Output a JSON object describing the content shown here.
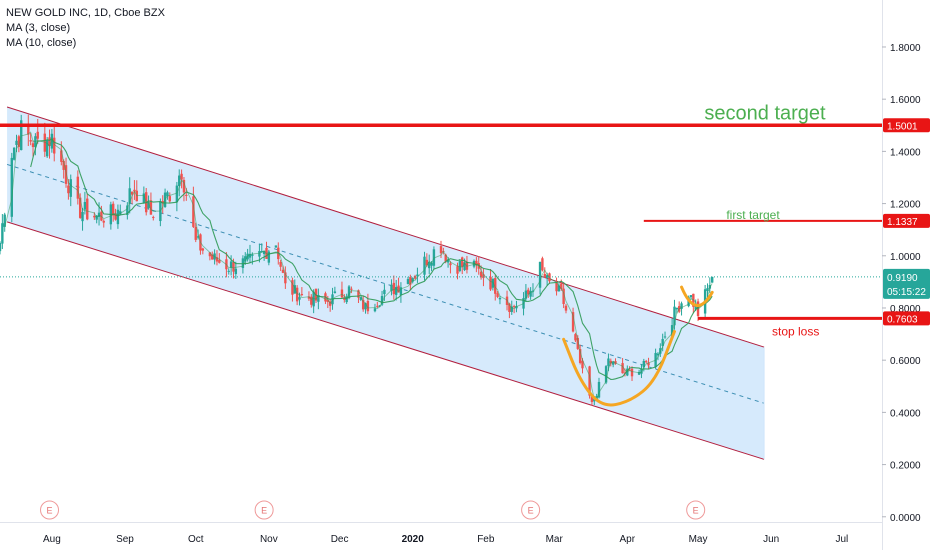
{
  "legend": {
    "title": "NEW GOLD INC, 1D, Cboe BZX",
    "ma_short": "MA (3, close)",
    "ma_long": "MA (10, close)"
  },
  "colors": {
    "up": "#26a69a",
    "down": "#ef5350",
    "channel_fill": "#cfe6fb",
    "channel_edge": "#b2203f",
    "midline": "#3d8fb3",
    "level_line": "#e81515",
    "ma": "#2e9a55",
    "cup": "#f5a623",
    "target_text": "#4caf50"
  },
  "chart_data": {
    "type": "candlestick",
    "title": "NEW GOLD INC, 1D, Cboe BZX",
    "y_ticks": [
      "0.0000",
      "0.2000",
      "0.4000",
      "0.6000",
      "0.8000",
      "1.0000",
      "1.2000",
      "1.4000",
      "1.6000",
      "1.8000"
    ],
    "x_ticks": [
      "Aug",
      "Sep",
      "Oct",
      "Nov",
      "Dec",
      "2020",
      "Feb",
      "Mar",
      "Apr",
      "May",
      "Jun",
      "Jul"
    ],
    "ylim": [
      -0.02,
      1.98
    ],
    "x_axis_range": [
      "2019-07-10",
      "2020-07-18"
    ],
    "series": [
      {
        "name": "MA (3, close)",
        "type": "line"
      },
      {
        "name": "MA (10, close)",
        "type": "line"
      }
    ],
    "ohlc_anchor_closes": [
      [
        "2019-07-10",
        1.05
      ],
      [
        "2019-07-15",
        1.4
      ],
      [
        "2019-07-19",
        1.48
      ],
      [
        "2019-07-25",
        1.43
      ],
      [
        "2019-08-01",
        1.45
      ],
      [
        "2019-08-06",
        1.33
      ],
      [
        "2019-08-12",
        1.18
      ],
      [
        "2019-08-20",
        1.15
      ],
      [
        "2019-08-28",
        1.16
      ],
      [
        "2019-09-05",
        1.26
      ],
      [
        "2019-09-12",
        1.16
      ],
      [
        "2019-09-20",
        1.24
      ],
      [
        "2019-09-25",
        1.33
      ],
      [
        "2019-10-01",
        1.05
      ],
      [
        "2019-10-08",
        0.99
      ],
      [
        "2019-10-15",
        0.96
      ],
      [
        "2019-10-25",
        0.98
      ],
      [
        "2019-11-04",
        1.05
      ],
      [
        "2019-11-08",
        0.88
      ],
      [
        "2019-11-14",
        0.85
      ],
      [
        "2019-11-25",
        0.82
      ],
      [
        "2019-12-05",
        0.87
      ],
      [
        "2019-12-12",
        0.8
      ],
      [
        "2019-12-20",
        0.85
      ],
      [
        "2020-01-02",
        0.93
      ],
      [
        "2020-01-08",
        1.0
      ],
      [
        "2020-01-13",
        1.04
      ],
      [
        "2020-01-17",
        0.97
      ],
      [
        "2020-01-28",
        0.95
      ],
      [
        "2020-02-05",
        0.88
      ],
      [
        "2020-02-12",
        0.8
      ],
      [
        "2020-02-19",
        0.85
      ],
      [
        "2020-02-24",
        0.95
      ],
      [
        "2020-02-27",
        0.9
      ],
      [
        "2020-03-04",
        0.85
      ],
      [
        "2020-03-09",
        0.7
      ],
      [
        "2020-03-13",
        0.55
      ],
      [
        "2020-03-17",
        0.43
      ],
      [
        "2020-03-20",
        0.5
      ],
      [
        "2020-03-24",
        0.6
      ],
      [
        "2020-03-30",
        0.55
      ],
      [
        "2020-04-06",
        0.56
      ],
      [
        "2020-04-13",
        0.62
      ],
      [
        "2020-04-17",
        0.7
      ],
      [
        "2020-04-22",
        0.8
      ],
      [
        "2020-04-27",
        0.86
      ],
      [
        "2020-05-01",
        0.78
      ],
      [
        "2020-05-05",
        0.87
      ],
      [
        "2020-05-07",
        0.919
      ]
    ],
    "channel": {
      "upper_start": [
        "2019-07-13",
        1.57
      ],
      "upper_end": [
        "2020-05-29",
        0.65
      ],
      "lower_start": [
        "2019-07-13",
        1.13
      ],
      "lower_end": [
        "2020-05-29",
        0.22
      ]
    },
    "cup_pattern": {
      "points": [
        [
          "2020-03-05",
          0.68
        ],
        [
          "2020-03-12",
          0.52
        ],
        [
          "2020-03-21",
          0.42
        ],
        [
          "2020-04-02",
          0.44
        ],
        [
          "2020-04-13",
          0.52
        ],
        [
          "2020-04-21",
          0.71
        ]
      ],
      "handle": [
        [
          "2020-04-24",
          0.88
        ],
        [
          "2020-04-30",
          0.75
        ],
        [
          "2020-05-07",
          0.86
        ]
      ]
    },
    "levels": [
      {
        "label": "second target",
        "value": 1.5001,
        "display": "1.5001"
      },
      {
        "label": "first target",
        "value": 1.1337,
        "display": "1.1337"
      },
      {
        "label": "stop loss",
        "value": 0.7603,
        "display": "0.7603"
      }
    ],
    "current_price": {
      "value": 0.919,
      "display": "0.9190",
      "countdown": "05:15:22"
    },
    "annotations": [
      "second target",
      "first target",
      "stop loss"
    ],
    "event_markers": {
      "symbol": "E",
      "dates": [
        "2019-07-31",
        "2019-10-30",
        "2020-02-20",
        "2020-04-30"
      ]
    }
  }
}
